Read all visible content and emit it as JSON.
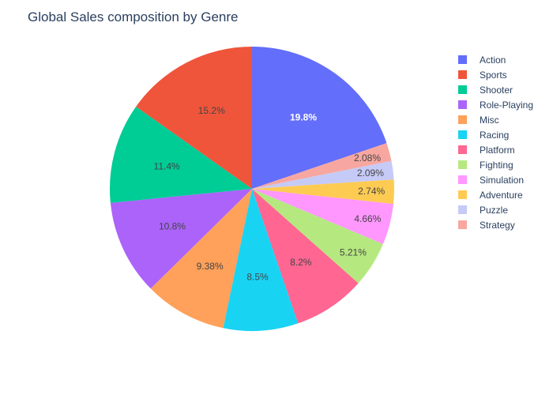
{
  "chart_data": {
    "type": "pie",
    "title": "Global Sales composition by Genre",
    "legend_position": "right",
    "direction": "clockwise",
    "start": "top",
    "slices": [
      {
        "label": "Action",
        "value": 19.8,
        "display": "19.8%",
        "color": "#636efa",
        "text_color": "#ffffff",
        "bold": true
      },
      {
        "label": "Strategy",
        "value": 2.08,
        "display": "2.08%",
        "color": "#f7a7a0",
        "text_color": "#444444",
        "bold": false
      },
      {
        "label": "Puzzle",
        "value": 2.09,
        "display": "2.09%",
        "color": "#c6caf6",
        "text_color": "#444444",
        "bold": false
      },
      {
        "label": "Adventure",
        "value": 2.74,
        "display": "2.74%",
        "color": "#fecb52",
        "text_color": "#444444",
        "bold": false
      },
      {
        "label": "Simulation",
        "value": 4.66,
        "display": "4.66%",
        "color": "#ff97ff",
        "text_color": "#444444",
        "bold": false
      },
      {
        "label": "Fighting",
        "value": 5.21,
        "display": "5.21%",
        "color": "#b6e880",
        "text_color": "#444444",
        "bold": false
      },
      {
        "label": "Platform",
        "value": 8.2,
        "display": "8.2%",
        "color": "#ff6692",
        "text_color": "#444444",
        "bold": false
      },
      {
        "label": "Racing",
        "value": 8.5,
        "display": "8.5%",
        "color": "#19d3f3",
        "text_color": "#444444",
        "bold": false
      },
      {
        "label": "Misc",
        "value": 9.38,
        "display": "9.38%",
        "color": "#ffa15a",
        "text_color": "#444444",
        "bold": false
      },
      {
        "label": "Role-Playing",
        "value": 10.8,
        "display": "10.8%",
        "color": "#ab63fa",
        "text_color": "#444444",
        "bold": false
      },
      {
        "label": "Shooter",
        "value": 11.4,
        "display": "11.4%",
        "color": "#00cc96",
        "text_color": "#444444",
        "bold": false
      },
      {
        "label": "Sports",
        "value": 15.2,
        "display": "15.2%",
        "color": "#ef553b",
        "text_color": "#444444",
        "bold": false
      }
    ],
    "legend": [
      {
        "label": "Action",
        "color": "#636efa"
      },
      {
        "label": "Sports",
        "color": "#ef553b"
      },
      {
        "label": "Shooter",
        "color": "#00cc96"
      },
      {
        "label": "Role-Playing",
        "color": "#ab63fa"
      },
      {
        "label": "Misc",
        "color": "#ffa15a"
      },
      {
        "label": "Racing",
        "color": "#19d3f3"
      },
      {
        "label": "Platform",
        "color": "#ff6692"
      },
      {
        "label": "Fighting",
        "color": "#b6e880"
      },
      {
        "label": "Simulation",
        "color": "#ff97ff"
      },
      {
        "label": "Adventure",
        "color": "#fecb52"
      },
      {
        "label": "Puzzle",
        "color": "#c6caf6"
      },
      {
        "label": "Strategy",
        "color": "#f7a7a0"
      }
    ]
  }
}
